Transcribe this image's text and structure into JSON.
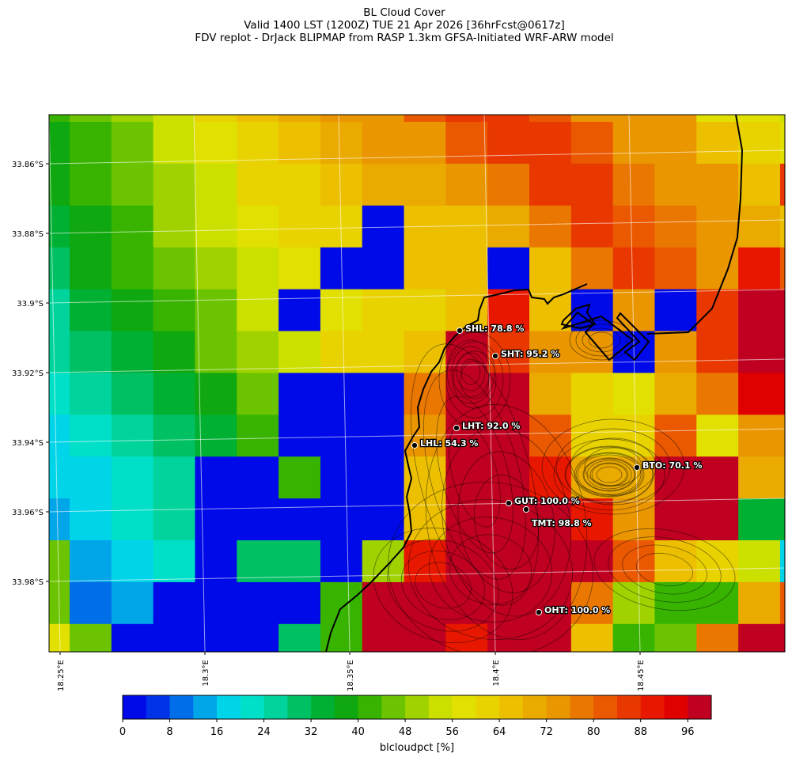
{
  "title": {
    "line1": "BL Cloud Cover",
    "line2": "Valid 1400 LST (1200Z) TUE 21 Apr 2026 [36hrFcst@0617z]",
    "line3": "FDV replot - DrJack BLIPMAP from RASP 1.3km GFSA-Initiated WRF-ARW model"
  },
  "chart_data": {
    "type": "heatmap",
    "variable": "blcloudpct",
    "colorbar_label": "blcloudpct [%]",
    "colorbar_ticks": [
      "0",
      "8",
      "16",
      "24",
      "32",
      "40",
      "48",
      "56",
      "64",
      "72",
      "80",
      "88",
      "96"
    ],
    "colorbar_range": [
      0,
      100
    ],
    "colorbar_step": 4,
    "colors": [
      "#000ae8",
      "#0032e8",
      "#006ee8",
      "#00a6e8",
      "#00d4e8",
      "#00e0c8",
      "#00d49c",
      "#00c064",
      "#00b032",
      "#10a810",
      "#38b400",
      "#6cc400",
      "#a0d200",
      "#cce000",
      "#e2e000",
      "#e8d200",
      "#ecc000",
      "#eaaa00",
      "#ea9600",
      "#ea7800",
      "#ea5800",
      "#e83800",
      "#e81800",
      "#e00000",
      "#c00020"
    ],
    "y_ticks": [
      "33.86°S",
      "33.88°S",
      "33.9°S",
      "33.92°S",
      "33.94°S",
      "33.96°S",
      "33.98°S"
    ],
    "x_ticks": [
      "18.25°E",
      "18.3°E",
      "18.35°E",
      "18.4°E",
      "18.45°E"
    ],
    "values": [
      [
        42,
        46,
        50,
        54,
        62,
        66,
        70,
        74,
        74,
        82,
        86,
        86,
        82,
        74,
        74,
        74,
        58,
        58,
        54
      ],
      [
        38,
        42,
        46,
        54,
        58,
        62,
        66,
        70,
        74,
        74,
        82,
        86,
        86,
        82,
        74,
        74,
        66,
        62,
        58
      ],
      [
        38,
        42,
        46,
        50,
        54,
        62,
        62,
        66,
        70,
        70,
        74,
        78,
        86,
        86,
        78,
        74,
        74,
        66,
        86
      ],
      [
        34,
        38,
        42,
        50,
        54,
        58,
        62,
        62,
        2,
        66,
        66,
        70,
        78,
        86,
        82,
        78,
        74,
        70,
        66
      ],
      [
        30,
        38,
        42,
        46,
        50,
        54,
        58,
        2,
        2,
        66,
        66,
        2,
        66,
        78,
        86,
        82,
        74,
        90,
        82
      ],
      [
        26,
        34,
        38,
        42,
        46,
        54,
        2,
        58,
        62,
        62,
        66,
        90,
        66,
        2,
        74,
        2,
        86,
        98,
        98
      ],
      [
        26,
        30,
        34,
        38,
        46,
        50,
        54,
        62,
        62,
        66,
        98,
        86,
        74,
        74,
        2,
        74,
        86,
        98,
        98
      ],
      [
        22,
        26,
        30,
        34,
        38,
        46,
        2,
        2,
        2,
        78,
        98,
        98,
        70,
        62,
        58,
        70,
        78,
        94,
        94
      ],
      [
        18,
        22,
        26,
        30,
        34,
        42,
        2,
        2,
        2,
        74,
        98,
        98,
        82,
        62,
        62,
        82,
        58,
        74,
        74
      ],
      [
        18,
        18,
        22,
        26,
        2,
        2,
        42,
        2,
        2,
        66,
        98,
        98,
        90,
        70,
        70,
        98,
        98,
        70,
        70
      ],
      [
        14,
        18,
        22,
        26,
        2,
        2,
        2,
        2,
        2,
        66,
        98,
        98,
        98,
        90,
        74,
        98,
        98,
        34,
        34
      ],
      [
        46,
        14,
        18,
        22,
        2,
        30,
        30,
        2,
        50,
        90,
        98,
        98,
        98,
        98,
        82,
        66,
        62,
        54,
        18
      ],
      [
        46,
        10,
        14,
        2,
        2,
        2,
        2,
        42,
        98,
        98,
        98,
        98,
        98,
        78,
        50,
        42,
        42,
        70,
        82
      ],
      [
        58,
        46,
        2,
        2,
        2,
        2,
        30,
        42,
        98,
        98,
        90,
        98,
        98,
        66,
        42,
        46,
        78,
        98,
        98
      ]
    ]
  },
  "stations": [
    {
      "code": "SHL",
      "label": "SHL: 78.8 %"
    },
    {
      "code": "SHT",
      "label": "SHT: 95.2 %"
    },
    {
      "code": "LHT",
      "label": "LHT: 92.0 %"
    },
    {
      "code": "LHL",
      "label": "LHL: 54.3 %"
    },
    {
      "code": "BTO",
      "label": "BTO: 70.1 %"
    },
    {
      "code": "GUT",
      "label": "GUT: 100.0 %"
    },
    {
      "code": "TMT",
      "label": "TMT: 98.8 %"
    },
    {
      "code": "OHT",
      "label": "OHT: 100.0 %"
    }
  ]
}
